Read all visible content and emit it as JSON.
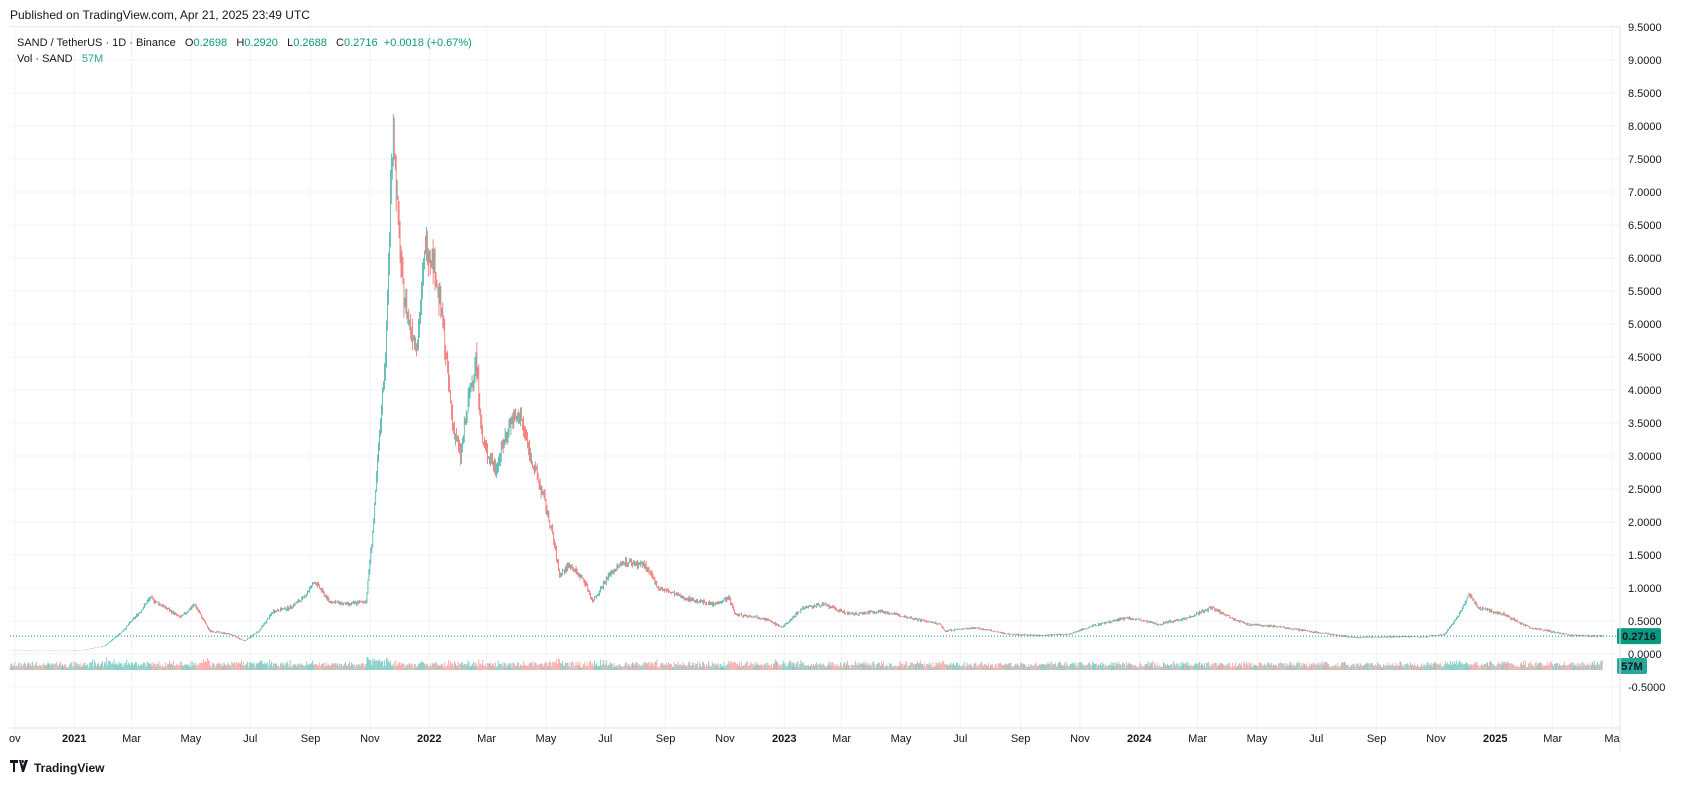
{
  "published": "Published on TradingView.com, Apr 21, 2025 23:49 UTC",
  "legend": {
    "symbol": "SAND / TetherUS · 1D · Binance",
    "open_label": "O",
    "open": "0.2698",
    "high_label": "H",
    "high": "0.2920",
    "low_label": "L",
    "low": "0.2688",
    "close_label": "C",
    "close": "0.2716",
    "change": "+0.0018 (+0.67%)",
    "vol_label": "Vol · SAND",
    "vol_value": "57M"
  },
  "footer": {
    "brand": "TradingView",
    "logo_icon": "tradingview-logo-icon"
  },
  "colors": {
    "up": "#26a69a",
    "down": "#ef5350",
    "up_vol": "#80cbc4",
    "down_vol": "#f7a9a7",
    "last_price": "#089981"
  },
  "chart_data": {
    "type": "candlestick",
    "title": "SAND / TetherUS · 1D · Binance",
    "last_price_label": "0.2716",
    "last_volume_label": "57M",
    "y_ticks": [
      "9.5000",
      "9.0000",
      "8.5000",
      "8.0000",
      "7.5000",
      "7.0000",
      "6.5000",
      "6.0000",
      "5.5000",
      "5.0000",
      "4.5000",
      "4.0000",
      "3.5000",
      "3.0000",
      "2.5000",
      "2.0000",
      "1.5000",
      "1.0000",
      "0.5000",
      "0.0000",
      "-0.5000"
    ],
    "ylim": [
      -0.5,
      9.5
    ],
    "x_ticks": [
      "ov",
      "2021",
      "Mar",
      "May",
      "Jul",
      "Sep",
      "Nov",
      "2022",
      "Mar",
      "May",
      "Jul",
      "Sep",
      "Nov",
      "2023",
      "Mar",
      "May",
      "Jul",
      "Sep",
      "Nov",
      "2024",
      "Mar",
      "May",
      "Jul",
      "Sep",
      "Nov",
      "2025",
      "Mar",
      "Ma"
    ],
    "x_tick_dates": [
      "2020-11-01",
      "2021-01-01",
      "2021-03-01",
      "2021-05-01",
      "2021-07-01",
      "2021-09-01",
      "2021-11-01",
      "2022-01-01",
      "2022-03-01",
      "2022-05-01",
      "2022-07-01",
      "2022-09-01",
      "2022-11-01",
      "2023-01-01",
      "2023-03-01",
      "2023-05-01",
      "2023-07-01",
      "2023-09-01",
      "2023-11-01",
      "2024-01-01",
      "2024-03-01",
      "2024-05-01",
      "2024-07-01",
      "2024-09-01",
      "2024-11-01",
      "2025-01-01",
      "2025-03-01",
      "2025-05-01"
    ],
    "x_range": [
      "2020-10-27",
      "2025-05-01"
    ],
    "grid": true,
    "price_path": [
      [
        "2020-10-27",
        0.05
      ],
      [
        "2020-12-20",
        0.05
      ],
      [
        "2021-01-10",
        0.06
      ],
      [
        "2021-02-01",
        0.12
      ],
      [
        "2021-02-20",
        0.35
      ],
      [
        "2021-03-10",
        0.65
      ],
      [
        "2021-03-20",
        0.85
      ],
      [
        "2021-04-05",
        0.7
      ],
      [
        "2021-04-20",
        0.55
      ],
      [
        "2021-05-05",
        0.75
      ],
      [
        "2021-05-20",
        0.35
      ],
      [
        "2021-06-10",
        0.3
      ],
      [
        "2021-06-25",
        0.2
      ],
      [
        "2021-07-10",
        0.35
      ],
      [
        "2021-07-25",
        0.65
      ],
      [
        "2021-08-10",
        0.7
      ],
      [
        "2021-08-25",
        0.85
      ],
      [
        "2021-09-05",
        1.1
      ],
      [
        "2021-09-20",
        0.8
      ],
      [
        "2021-10-10",
        0.75
      ],
      [
        "2021-10-28",
        0.8
      ],
      [
        "2021-11-05",
        2.0
      ],
      [
        "2021-11-12",
        3.5
      ],
      [
        "2021-11-18",
        4.8
      ],
      [
        "2021-11-22",
        7.0
      ],
      [
        "2021-11-25",
        8.0
      ],
      [
        "2021-11-30",
        6.5
      ],
      [
        "2021-12-05",
        5.5
      ],
      [
        "2021-12-12",
        5.0
      ],
      [
        "2021-12-20",
        4.7
      ],
      [
        "2021-12-28",
        6.2
      ],
      [
        "2022-01-05",
        6.0
      ],
      [
        "2022-01-15",
        5.0
      ],
      [
        "2022-01-25",
        3.5
      ],
      [
        "2022-02-02",
        3.0
      ],
      [
        "2022-02-10",
        3.8
      ],
      [
        "2022-02-18",
        4.5
      ],
      [
        "2022-02-25",
        3.2
      ],
      [
        "2022-03-10",
        2.8
      ],
      [
        "2022-03-25",
        3.5
      ],
      [
        "2022-04-05",
        3.6
      ],
      [
        "2022-04-15",
        3.0
      ],
      [
        "2022-04-28",
        2.4
      ],
      [
        "2022-05-08",
        1.8
      ],
      [
        "2022-05-15",
        1.2
      ],
      [
        "2022-05-25",
        1.35
      ],
      [
        "2022-06-10",
        1.1
      ],
      [
        "2022-06-18",
        0.8
      ],
      [
        "2022-07-05",
        1.2
      ],
      [
        "2022-07-20",
        1.4
      ],
      [
        "2022-08-10",
        1.35
      ],
      [
        "2022-08-25",
        1.0
      ],
      [
        "2022-09-20",
        0.85
      ],
      [
        "2022-10-20",
        0.75
      ],
      [
        "2022-11-05",
        0.85
      ],
      [
        "2022-11-12",
        0.6
      ],
      [
        "2022-12-10",
        0.55
      ],
      [
        "2022-12-30",
        0.4
      ],
      [
        "2023-01-20",
        0.7
      ],
      [
        "2023-02-10",
        0.75
      ],
      [
        "2023-03-10",
        0.6
      ],
      [
        "2023-04-10",
        0.65
      ],
      [
        "2023-05-10",
        0.55
      ],
      [
        "2023-06-10",
        0.45
      ],
      [
        "2023-06-15",
        0.35
      ],
      [
        "2023-07-15",
        0.4
      ],
      [
        "2023-08-20",
        0.3
      ],
      [
        "2023-09-20",
        0.28
      ],
      [
        "2023-10-20",
        0.3
      ],
      [
        "2023-11-20",
        0.45
      ],
      [
        "2023-12-20",
        0.55
      ],
      [
        "2024-01-20",
        0.45
      ],
      [
        "2024-02-20",
        0.55
      ],
      [
        "2024-03-15",
        0.7
      ],
      [
        "2024-04-05",
        0.55
      ],
      [
        "2024-04-20",
        0.45
      ],
      [
        "2024-05-20",
        0.42
      ],
      [
        "2024-06-20",
        0.35
      ],
      [
        "2024-07-15",
        0.3
      ],
      [
        "2024-08-10",
        0.25
      ],
      [
        "2024-09-15",
        0.26
      ],
      [
        "2024-10-20",
        0.26
      ],
      [
        "2024-11-10",
        0.3
      ],
      [
        "2024-11-25",
        0.6
      ],
      [
        "2024-12-05",
        0.9
      ],
      [
        "2024-12-15",
        0.7
      ],
      [
        "2025-01-10",
        0.6
      ],
      [
        "2025-02-05",
        0.4
      ],
      [
        "2025-02-25",
        0.35
      ],
      [
        "2025-03-20",
        0.28
      ],
      [
        "2025-04-21",
        0.2716
      ]
    ]
  }
}
